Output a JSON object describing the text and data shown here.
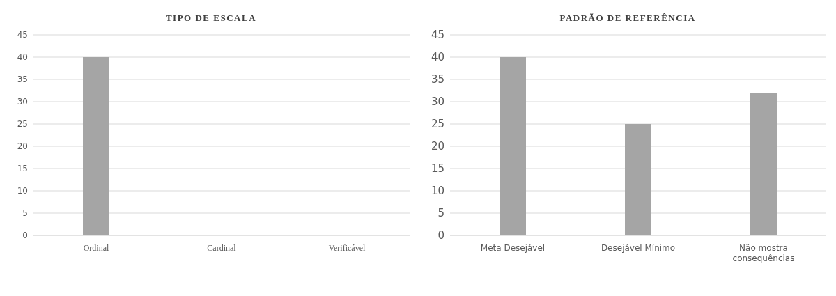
{
  "chart_data": [
    {
      "type": "bar",
      "title": "TIPO DE ESCALA",
      "categories": [
        "Ordinal",
        "Cardinal",
        "Verificável"
      ],
      "values": [
        40,
        0,
        0
      ],
      "color": "#a5a5a5",
      "ylim": [
        0,
        45
      ],
      "yticks": [
        0,
        5,
        10,
        15,
        20,
        25,
        30,
        35,
        40,
        45
      ],
      "grid": "y"
    },
    {
      "type": "bar",
      "title": "PADRÃO DE REFERÊNCIA",
      "categories": [
        "Meta Desejável",
        "Desejável Mínimo",
        "Não mostra consequências"
      ],
      "values": [
        40,
        25,
        32
      ],
      "color": "#a5a5a5",
      "ylim": [
        0,
        45
      ],
      "yticks": [
        0,
        5,
        10,
        15,
        20,
        25,
        30,
        35,
        40,
        45
      ],
      "grid": "y"
    }
  ]
}
